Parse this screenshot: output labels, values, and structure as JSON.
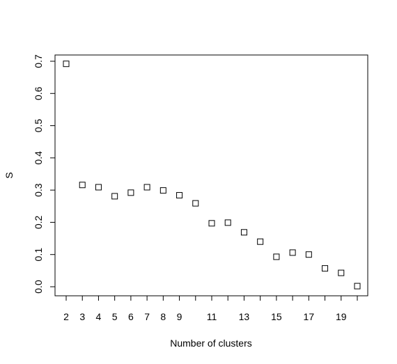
{
  "chart_data": {
    "type": "scatter",
    "title": "",
    "xlabel": "Number of clusters",
    "ylabel": "S",
    "xlim": [
      2,
      20
    ],
    "ylim": [
      0.0,
      0.7
    ],
    "x_ticks": [
      2,
      3,
      4,
      5,
      6,
      7,
      8,
      9,
      10,
      11,
      12,
      13,
      14,
      15,
      16,
      17,
      18,
      19,
      20
    ],
    "x_tick_labels": [
      "2",
      "3",
      "4",
      "5",
      "6",
      "7",
      "8",
      "9",
      "",
      "11",
      "",
      "13",
      "",
      "15",
      "",
      "17",
      "",
      "19",
      ""
    ],
    "y_ticks": [
      0.0,
      0.1,
      0.2,
      0.3,
      0.4,
      0.5,
      0.6,
      0.7
    ],
    "y_tick_labels": [
      "0.0",
      "0.1",
      "0.2",
      "0.3",
      "0.4",
      "0.5",
      "0.6",
      "0.7"
    ],
    "marker": "open-square",
    "grid": false,
    "legend": "none",
    "points": [
      {
        "x": 2,
        "y": 0.692
      },
      {
        "x": 3,
        "y": 0.316
      },
      {
        "x": 4,
        "y": 0.309
      },
      {
        "x": 5,
        "y": 0.281
      },
      {
        "x": 6,
        "y": 0.292
      },
      {
        "x": 7,
        "y": 0.309
      },
      {
        "x": 8,
        "y": 0.299
      },
      {
        "x": 9,
        "y": 0.284
      },
      {
        "x": 10,
        "y": 0.259
      },
      {
        "x": 11,
        "y": 0.197
      },
      {
        "x": 12,
        "y": 0.199
      },
      {
        "x": 13,
        "y": 0.169
      },
      {
        "x": 14,
        "y": 0.14
      },
      {
        "x": 15,
        "y": 0.093
      },
      {
        "x": 16,
        "y": 0.106
      },
      {
        "x": 17,
        "y": 0.1
      },
      {
        "x": 18,
        "y": 0.057
      },
      {
        "x": 19,
        "y": 0.043
      },
      {
        "x": 20,
        "y": 0.002
      }
    ]
  }
}
